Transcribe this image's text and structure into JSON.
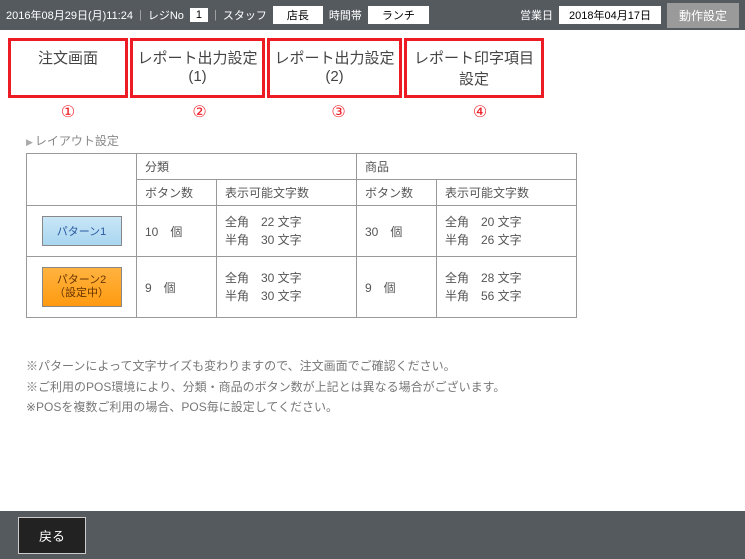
{
  "topbar": {
    "datetime": "2016年08月29日(月)11:24",
    "regNoLabel": "レジNo",
    "regNo": "1",
    "staffLabel": "スタッフ",
    "staffValue": "店長",
    "timeSlotLabel": "時間帯",
    "timeSlotValue": "ランチ",
    "bizDateLabel": "営業日",
    "bizDateValue": "2018年04月17日",
    "settingsBtn": "動作設定"
  },
  "tabs": {
    "t1": "注文画面",
    "t2": "レポート出力設定(1)",
    "t3": "レポート出力設定(2)",
    "t4": "レポート印字項目設定"
  },
  "circled": {
    "c1": "①",
    "c2": "②",
    "c3": "③",
    "c4": "④"
  },
  "section": {
    "title": "レイアウト設定"
  },
  "table": {
    "hdr_category": "分類",
    "hdr_product": "商品",
    "hdr_btncount": "ボタン数",
    "hdr_maxchars": "表示可能文字数",
    "rows": [
      {
        "patternName": "パターン1",
        "patternClass": "blue",
        "catBtnCount": "10　個",
        "catChars": "全角　22 文字\n半角　30 文字",
        "prodBtnCount": "30　個",
        "prodChars": "全角　20 文字\n半角　26 文字"
      },
      {
        "patternName": "パターン2\n（設定中）",
        "patternClass": "orange",
        "catBtnCount": "9　個",
        "catChars": "全角　30 文字\n半角　30 文字",
        "prodBtnCount": "9　個",
        "prodChars": "全角　28 文字\n半角　56 文字"
      }
    ]
  },
  "notes": {
    "n1": "※パターンによって文字サイズも変わりますので、注文画面でご確認ください。",
    "n2": "※ご利用のPOS環境により、分類・商品のボタン数が上記とは異なる場合がございます。",
    "n3": "※POSを複数ご利用の場合、POS毎に設定してください。"
  },
  "bottom": {
    "back": "戻る"
  }
}
